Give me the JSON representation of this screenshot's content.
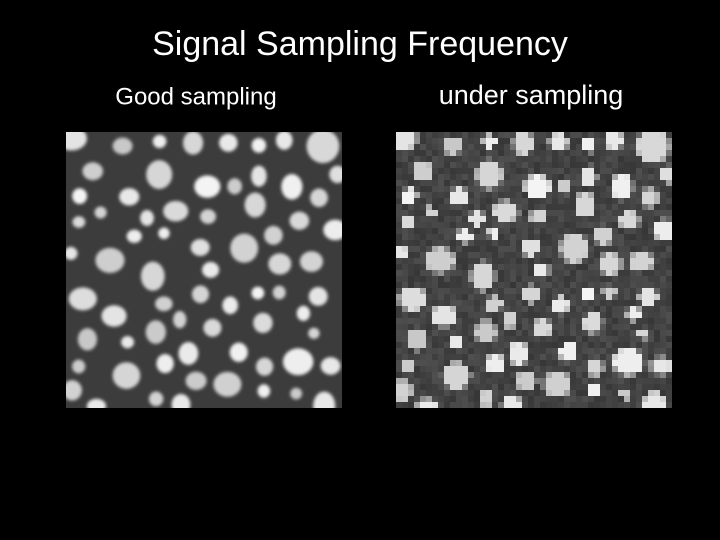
{
  "header": {
    "title": "Signal Sampling Frequency"
  },
  "panels": [
    {
      "caption": "Good sampling"
    },
    {
      "caption": "under sampling"
    }
  ]
}
